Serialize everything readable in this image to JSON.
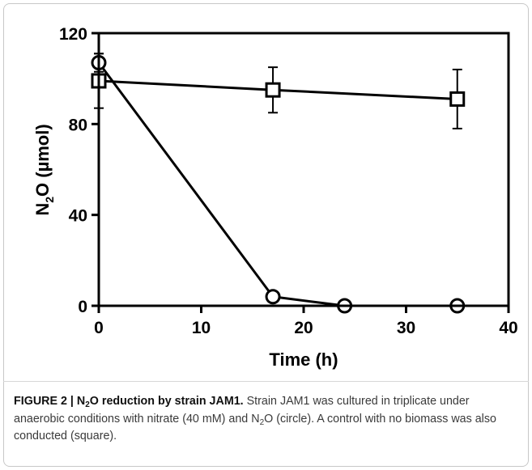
{
  "chart_data": {
    "type": "scatter",
    "xlabel": "Time (h)",
    "ylabel": {
      "pre": "N",
      "sub": "2",
      "post": "O (µmol)"
    },
    "xlim": [
      0,
      40
    ],
    "ylim": [
      0,
      120
    ],
    "xticks": [
      0,
      10,
      20,
      30,
      40
    ],
    "yticks": [
      0,
      40,
      80,
      120
    ],
    "grid": false,
    "legend": "none",
    "series": [
      {
        "marker": "circle",
        "x": [
          0,
          17,
          24,
          35
        ],
        "y": [
          107,
          4,
          0,
          0
        ],
        "err": [
          4,
          0,
          0,
          0
        ]
      },
      {
        "marker": "square",
        "x": [
          0,
          17,
          35
        ],
        "y": [
          99,
          95,
          91
        ],
        "err": [
          12,
          10,
          13
        ]
      }
    ]
  },
  "caption": {
    "lead_pre": "FIGURE 2 | N",
    "lead_sub": "2",
    "lead_post": "O reduction by strain JAM1.",
    "text1": " Strain JAM1 was cultured in triplicate under anaerobic conditions with nitrate (40 mM) and N",
    "text1_sub": "2",
    "text2": "O (circle). A control with no biomass was also conducted (square)."
  }
}
